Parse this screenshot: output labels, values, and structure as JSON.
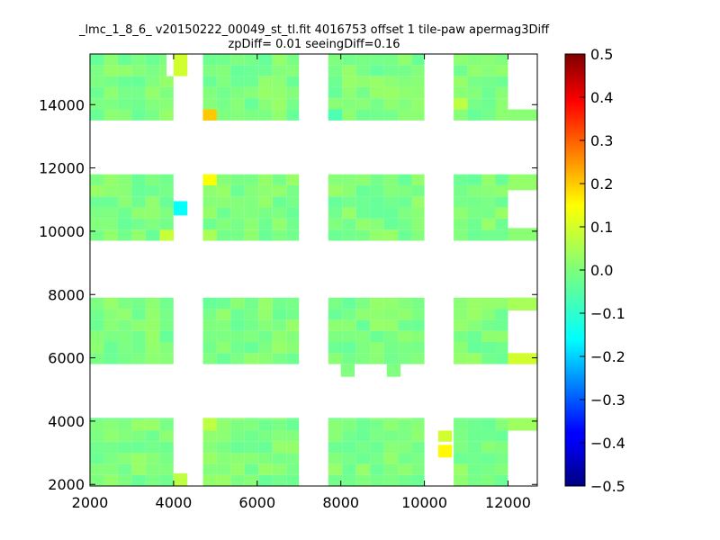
{
  "chart_data": {
    "type": "heatmap",
    "title": [
      "_lmc_1_8_6_ v20150222_00049_st_tl.fit 4016753 offset 1 tile-paw apermag3Diff",
      "zpDiff= 0.01 seeingDiff=0.16"
    ],
    "xlabel": "",
    "ylabel": "",
    "xlim": [
      2000,
      12700
    ],
    "ylim": [
      1950,
      15600
    ],
    "x_ticks": [
      2000,
      4000,
      6000,
      8000,
      10000,
      12000
    ],
    "y_ticks": [
      2000,
      4000,
      6000,
      8000,
      10000,
      12000,
      14000
    ],
    "colorbar": {
      "colormap": "jet",
      "range": [
        -0.5,
        0.5
      ],
      "ticks": [
        0.5,
        0.4,
        0.3,
        0.2,
        0.1,
        0.0,
        -0.1,
        -0.2,
        -0.3,
        -0.4,
        -0.5
      ],
      "tick_labels": [
        "0.5",
        "0.4",
        "0.3",
        "0.2",
        "0.1",
        "0.0",
        "−0.1",
        "−0.2",
        "−0.3",
        "−0.4",
        "−0.5"
      ]
    },
    "grid": false,
    "chip_x_ranges": [
      [
        2000,
        4000
      ],
      [
        4700,
        7000
      ],
      [
        7700,
        10000
      ],
      [
        10700,
        12700
      ]
    ],
    "chip_y_ranges": [
      [
        1950,
        4100
      ],
      [
        5800,
        7900
      ],
      [
        9700,
        11800
      ],
      [
        13500,
        15600
      ]
    ],
    "cell_size": [
      333,
      350
    ],
    "default_value": 0.0,
    "value_variation": 0.025,
    "missing_regions": [
      {
        "x": [
          4000,
          4700
        ],
        "y": [
          1950,
          2400
        ]
      },
      {
        "x": [
          4000,
          4700
        ],
        "y": [
          2400,
          15600
        ]
      },
      {
        "x": [
          12000,
          12700
        ],
        "y": [
          1950,
          3700
        ]
      },
      {
        "x": [
          12000,
          12700
        ],
        "y": [
          6000,
          7500
        ]
      },
      {
        "x": [
          12000,
          12700
        ],
        "y": [
          9700,
          11300
        ]
      },
      {
        "x": [
          12000,
          12700
        ],
        "y": [
          13800,
          15600
        ]
      },
      {
        "x": [
          3830,
          4000
        ],
        "y": [
          14900,
          15600
        ]
      },
      {
        "x": [
          4000,
          4700
        ],
        "y": [
          1950,
          2350
        ]
      }
    ],
    "extra_cells": [
      {
        "x": 4000,
        "y": 14900,
        "w": 330,
        "h": 700,
        "value": 0.08
      },
      {
        "x": 4000,
        "y": 1950,
        "w": 330,
        "h": 400,
        "value": 0.06
      },
      {
        "x": 4000,
        "y": 10500,
        "w": 330,
        "h": 450,
        "value": -0.12
      },
      {
        "x": 8000,
        "y": 5400,
        "w": 330,
        "h": 400,
        "value": 0.0
      },
      {
        "x": 9100,
        "y": 5400,
        "w": 330,
        "h": 400,
        "value": 0.0
      },
      {
        "x": 10330,
        "y": 3350,
        "w": 330,
        "h": 350,
        "value": 0.08
      },
      {
        "x": 10330,
        "y": 2850,
        "w": 330,
        "h": 400,
        "value": 0.13
      },
      {
        "x": 12000,
        "y": 5800,
        "w": 700,
        "h": 350,
        "value": 0.08
      },
      {
        "x": 12000,
        "y": 7500,
        "w": 700,
        "h": 400,
        "value": 0.04
      },
      {
        "x": 12000,
        "y": 11300,
        "w": 700,
        "h": 400,
        "value": 0.02
      },
      {
        "x": 12000,
        "y": 9700,
        "w": 700,
        "h": 400,
        "value": 0.01
      },
      {
        "x": 12000,
        "y": 13500,
        "w": 700,
        "h": 350,
        "value": 0.01
      },
      {
        "x": 12000,
        "y": 3700,
        "w": 700,
        "h": 400,
        "value": 0.03
      }
    ],
    "highlight_cells": [
      {
        "x": 4700,
        "y": 13500,
        "w": 333,
        "h": 350,
        "value": 0.18
      },
      {
        "x": 4700,
        "y": 11450,
        "w": 333,
        "h": 350,
        "value": 0.12
      },
      {
        "x": 4700,
        "y": 9700,
        "w": 333,
        "h": 350,
        "value": 0.04
      },
      {
        "x": 4700,
        "y": 3700,
        "w": 333,
        "h": 400,
        "value": 0.06
      },
      {
        "x": 3670,
        "y": 9700,
        "w": 333,
        "h": 350,
        "value": 0.07
      },
      {
        "x": 10700,
        "y": 13850,
        "w": 333,
        "h": 350,
        "value": 0.06
      },
      {
        "x": 7700,
        "y": 13500,
        "w": 333,
        "h": 350,
        "value": -0.05
      }
    ]
  }
}
